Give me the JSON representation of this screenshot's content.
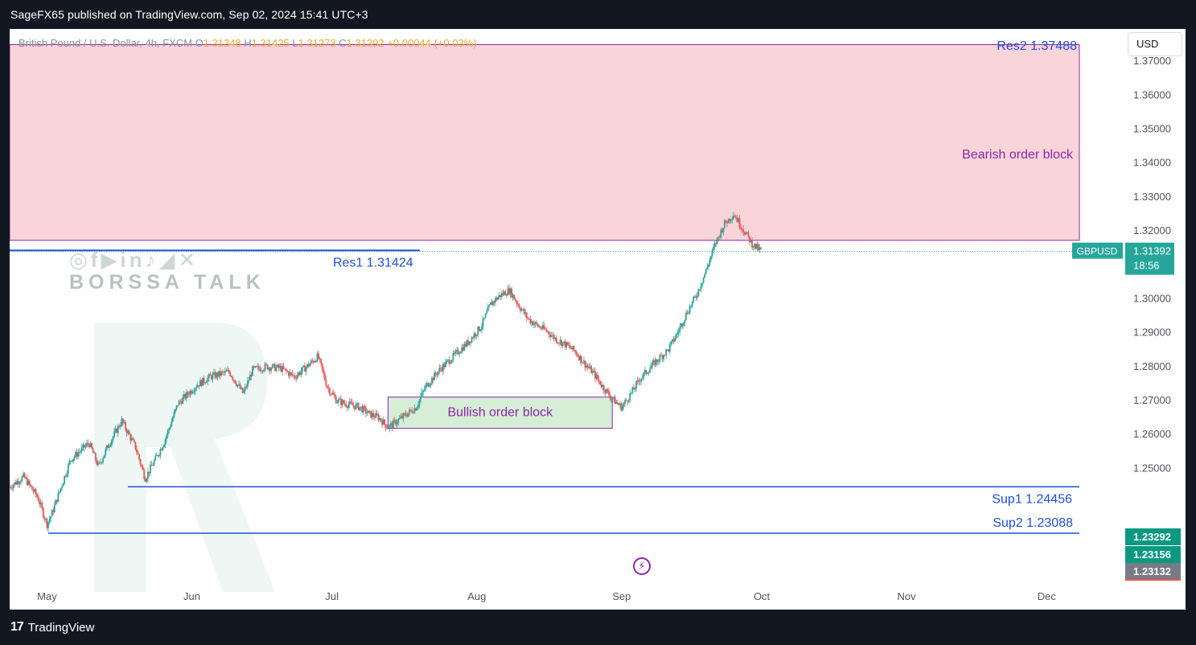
{
  "header": {
    "published_by": "SageFX65 published on TradingView.com, Sep 02, 2024 15:41 UTC+3"
  },
  "legend": {
    "symbol_desc": "British Pound / U.S. Dollar, 4h, FXCM",
    "open_label": "O",
    "open": "1.31348",
    "high_label": "H",
    "high": "1.31425",
    "low_label": "L",
    "low": "1.31273",
    "close_label": "C",
    "close": "1.31392",
    "change": "+0.00044 (+0.03%)"
  },
  "currency_button": "USD",
  "watermark": {
    "icons": "◎f▶in♪◢✕",
    "brand": "BORSSA TALK"
  },
  "footer": {
    "logo_mark": "17",
    "logo_text": "TradingView"
  },
  "colors": {
    "background": "#131722",
    "bearish_zone": "#f9d5da",
    "bullish_zone": "#d6eed6",
    "zone_border": "#8e24aa",
    "level_line": "#1e4fd8",
    "candle_up": "#26a69a",
    "candle_down": "#ef5350",
    "price_tag": "#26a69a",
    "annotation": "#8e24aa"
  },
  "chart_data": {
    "type": "candlestick",
    "symbol": "GBPUSD",
    "timeframe": "4h",
    "ylim": [
      1.215,
      1.3795
    ],
    "y_ticks": [
      1.25,
      1.26,
      1.27,
      1.28,
      1.29,
      1.3,
      1.32,
      1.33,
      1.34,
      1.35,
      1.36,
      1.37
    ],
    "y_tick_labels": [
      "1.25000",
      "1.26000",
      "1.27000",
      "1.28000",
      "1.29000",
      "1.30000",
      "1.32000",
      "1.33000",
      "1.34000",
      "1.35000",
      "1.36000",
      "1.37000"
    ],
    "x_ticks": [
      "2024-05-01",
      "2024-06-01",
      "2024-07-01",
      "2024-08-01",
      "2024-09-01",
      "2024-10-01",
      "2024-11-01",
      "2024-12-01"
    ],
    "x_tick_labels": [
      "May",
      "Jun",
      "Jul",
      "Aug",
      "Sep",
      "Oct",
      "Nov",
      "Dec"
    ],
    "xlim": [
      "2024-04-23",
      "2024-12-08"
    ],
    "price_path": [
      [
        "2024-04-23",
        1.2445
      ],
      [
        "2024-04-26",
        1.2475
      ],
      [
        "2024-04-29",
        1.2415
      ],
      [
        "2024-05-01",
        1.2335
      ],
      [
        "2024-05-02",
        1.2365
      ],
      [
        "2024-05-04",
        1.2445
      ],
      [
        "2024-05-06",
        1.2525
      ],
      [
        "2024-05-10",
        1.2575
      ],
      [
        "2024-05-12",
        1.2505
      ],
      [
        "2024-05-14",
        1.2565
      ],
      [
        "2024-05-17",
        1.264
      ],
      [
        "2024-05-20",
        1.256
      ],
      [
        "2024-05-22",
        1.247
      ],
      [
        "2024-05-26",
        1.2575
      ],
      [
        "2024-05-29",
        1.269
      ],
      [
        "2024-06-02",
        1.2745
      ],
      [
        "2024-06-05",
        1.277
      ],
      [
        "2024-06-09",
        1.2785
      ],
      [
        "2024-06-12",
        1.272
      ],
      [
        "2024-06-14",
        1.279
      ],
      [
        "2024-06-17",
        1.28
      ],
      [
        "2024-06-20",
        1.2795
      ],
      [
        "2024-06-23",
        1.277
      ],
      [
        "2024-06-26",
        1.2805
      ],
      [
        "2024-06-28",
        1.283
      ],
      [
        "2024-06-30",
        1.274
      ],
      [
        "2024-07-02",
        1.27
      ],
      [
        "2024-07-04",
        1.269
      ],
      [
        "2024-07-07",
        1.268
      ],
      [
        "2024-07-09",
        1.266
      ],
      [
        "2024-07-11",
        1.265
      ],
      [
        "2024-07-13",
        1.262
      ],
      [
        "2024-07-15",
        1.264
      ],
      [
        "2024-07-17",
        1.266
      ],
      [
        "2024-07-19",
        1.268
      ],
      [
        "2024-07-21",
        1.274
      ],
      [
        "2024-07-24",
        1.279
      ],
      [
        "2024-07-27",
        1.283
      ],
      [
        "2024-07-30",
        1.287
      ],
      [
        "2024-08-02",
        1.292
      ],
      [
        "2024-08-04",
        1.2985
      ],
      [
        "2024-08-06",
        1.301
      ],
      [
        "2024-08-08",
        1.3025
      ],
      [
        "2024-08-10",
        1.298
      ],
      [
        "2024-08-12",
        1.294
      ],
      [
        "2024-08-14",
        1.292
      ],
      [
        "2024-08-16",
        1.2905
      ],
      [
        "2024-08-18",
        1.288
      ],
      [
        "2024-08-20",
        1.2865
      ],
      [
        "2024-08-22",
        1.2845
      ],
      [
        "2024-08-24",
        1.281
      ],
      [
        "2024-08-26",
        1.278
      ],
      [
        "2024-08-28",
        1.274
      ],
      [
        "2024-08-30",
        1.2705
      ],
      [
        "2024-09-01",
        1.268
      ],
      [
        "2024-09-03",
        1.272
      ],
      [
        "2024-09-05",
        1.2765
      ],
      [
        "2024-09-08",
        1.281
      ],
      [
        "2024-09-11",
        1.285
      ],
      [
        "2024-09-13",
        1.29
      ],
      [
        "2024-09-15",
        1.296
      ],
      [
        "2024-09-17",
        1.301
      ],
      [
        "2024-09-19",
        1.308
      ],
      [
        "2024-09-21",
        1.316
      ],
      [
        "2024-09-23",
        1.322
      ],
      [
        "2024-09-25",
        1.325
      ],
      [
        "2024-09-27",
        1.3205
      ],
      [
        "2024-09-29",
        1.316
      ],
      [
        "2024-10-01",
        1.3139
      ]
    ],
    "annotations": {
      "bearish_block": {
        "label": "Bearish order block",
        "top": 1.37488,
        "bottom": 1.3172,
        "start": "2024-04-23",
        "end": "2024-12-08"
      },
      "bullish_block": {
        "label": "Bullish order block",
        "top": 1.271,
        "bottom": 1.2618,
        "start": "2024-07-13",
        "end": "2024-08-30"
      },
      "res2": {
        "label": "Res2 1.37488",
        "value": 1.37488
      },
      "res1": {
        "label": "Res1 1.31424",
        "value": 1.31424
      },
      "sup1": {
        "label": "Sup1 1.24456",
        "value": 1.24456
      },
      "sup2": {
        "label": "Sup2 1.23088",
        "value": 1.23088
      }
    },
    "last_price": {
      "label": "GBPUSD",
      "value": "1.31392",
      "countdown": "18:56"
    },
    "right_scale_tags": [
      {
        "value": "1.23292",
        "color": "#089981"
      },
      {
        "value": "1.23156",
        "color": "#089981"
      },
      {
        "value": "1.23132",
        "color": "#787b86"
      }
    ]
  }
}
